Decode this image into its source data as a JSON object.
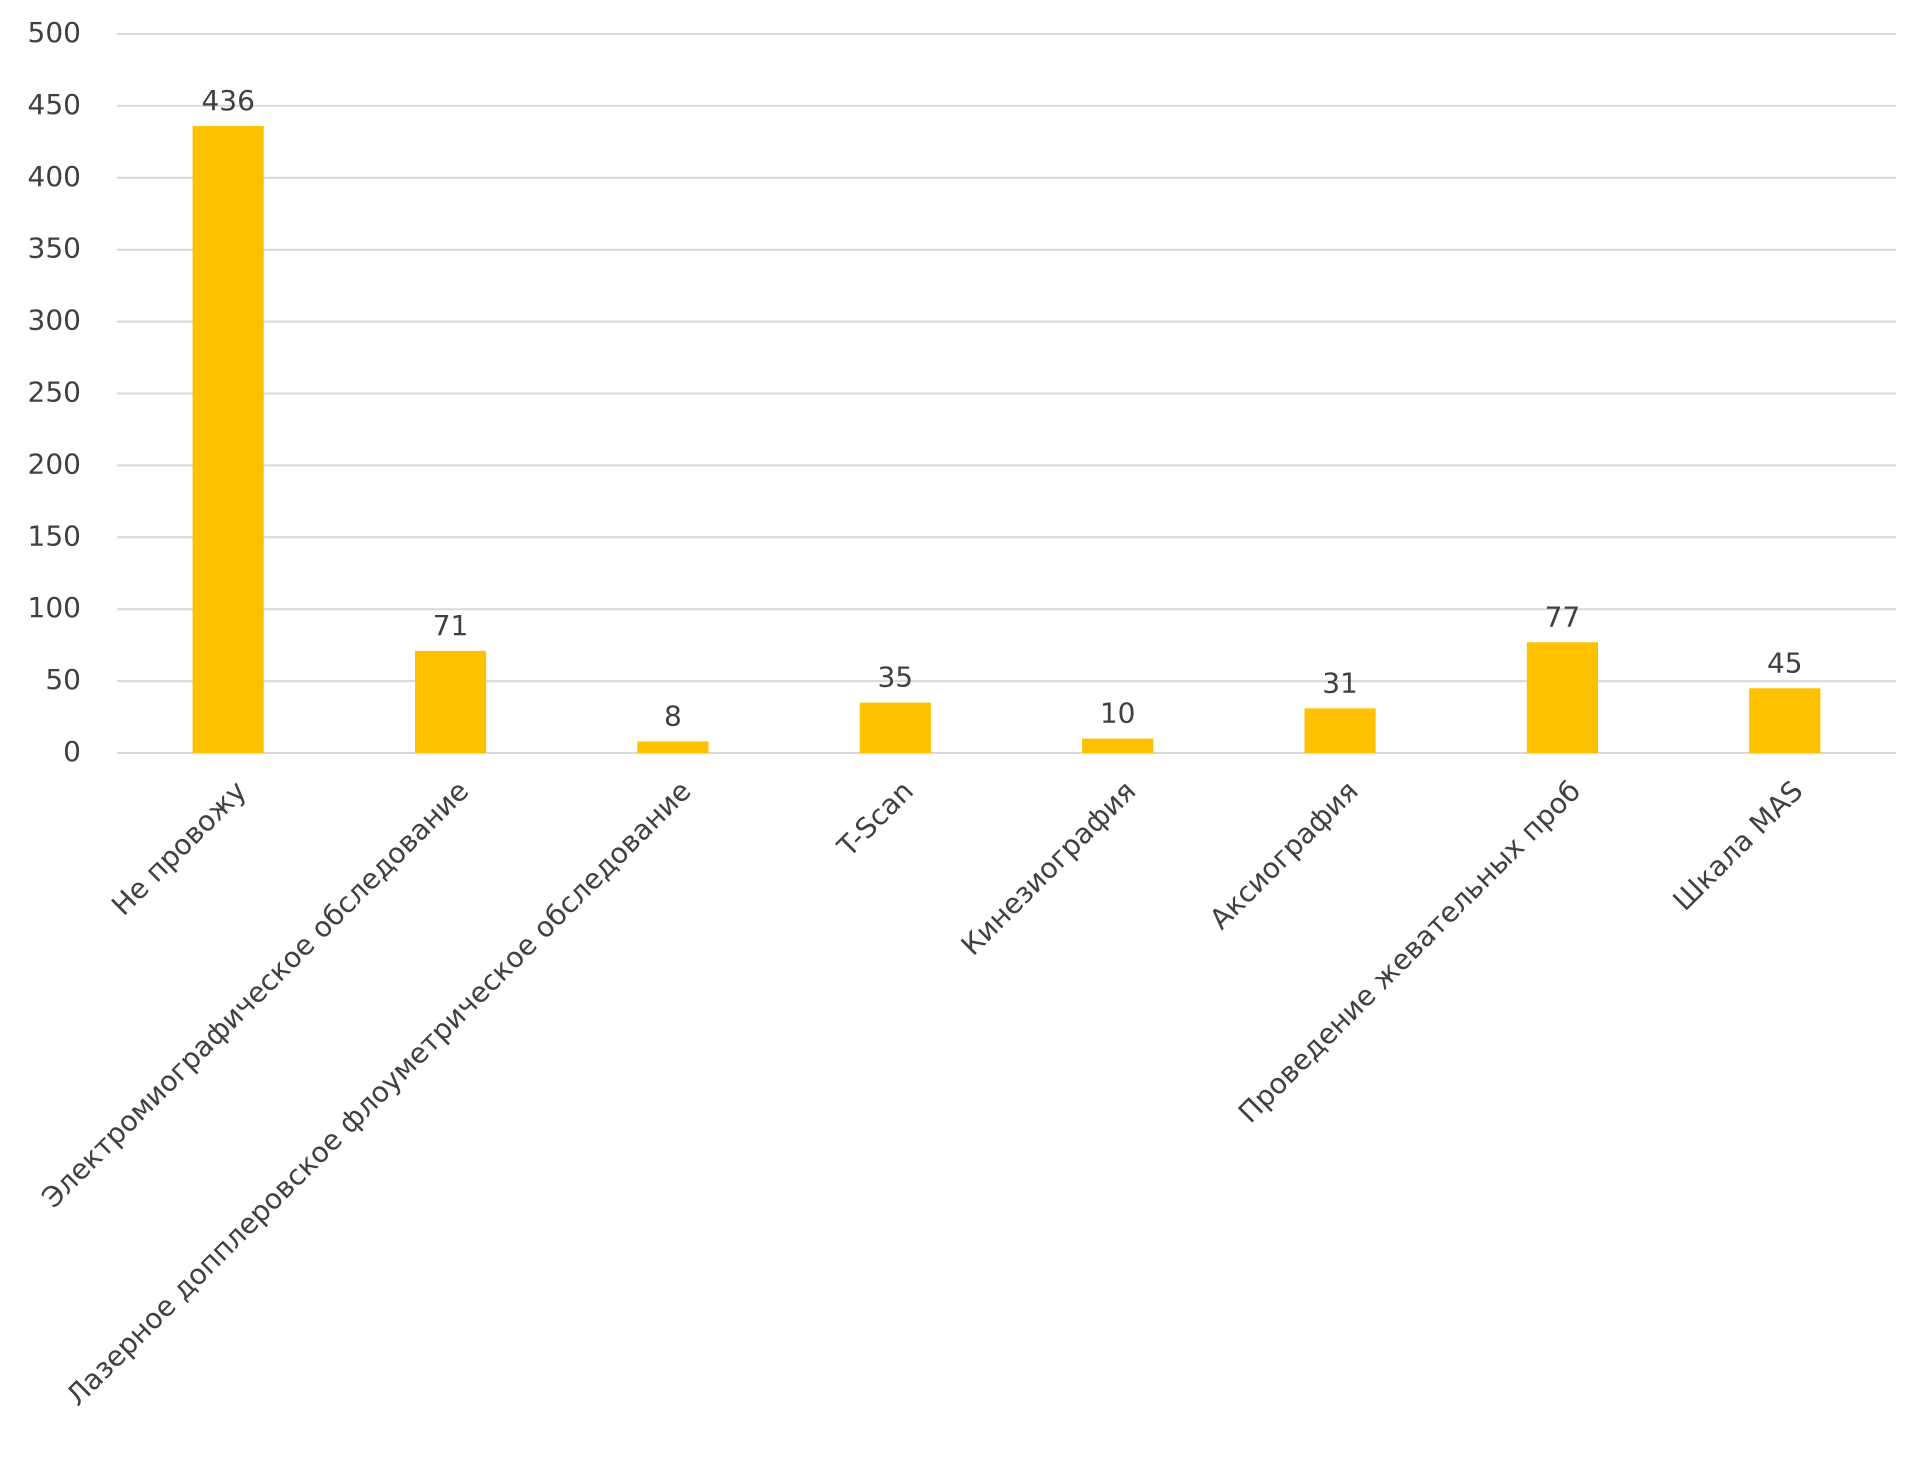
{
  "chart_data": {
    "type": "bar",
    "categories": [
      "Не провожу",
      "Электромиографическое обследование",
      "Лазерное допплеровское флоуметрическое обследование",
      "T-Scan",
      "Кинезиография",
      "Аксиография",
      "Проведение жевательных проб",
      "Шкала MAS"
    ],
    "values": [
      436,
      71,
      8,
      35,
      10,
      31,
      77,
      45
    ],
    "color": "#ffc000",
    "ylim": [
      0,
      500
    ],
    "yticks": [
      0,
      50,
      100,
      150,
      200,
      250,
      300,
      350,
      400,
      450,
      500
    ],
    "grid": true
  }
}
